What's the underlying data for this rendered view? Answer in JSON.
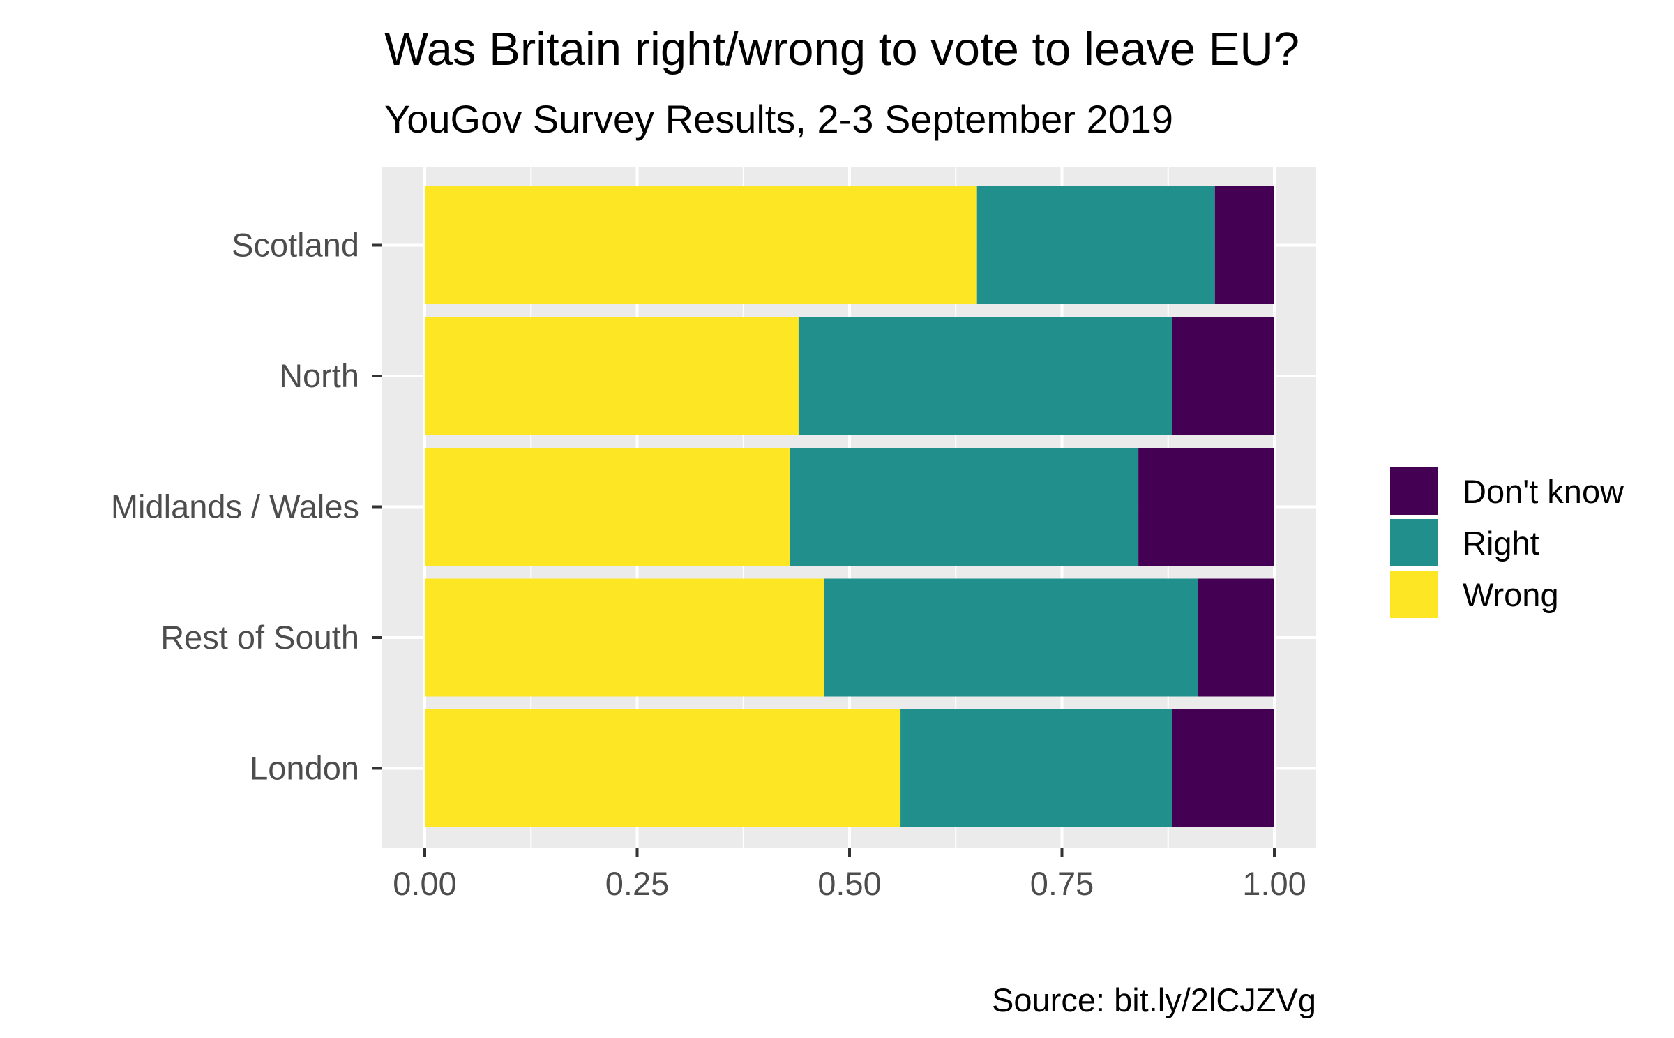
{
  "chart_data": {
    "type": "bar",
    "orientation": "horizontal",
    "stacked": true,
    "title": "Was Britain right/wrong to vote to leave EU?",
    "subtitle": "YouGov Survey Results, 2-3 September 2019",
    "caption": "Source: bit.ly/2lCJZVg",
    "xlabel": "",
    "ylabel": "",
    "xlim": [
      0,
      1
    ],
    "x_ticks": [
      "0.00",
      "0.25",
      "0.50",
      "0.75",
      "1.00"
    ],
    "x_tick_values": [
      0,
      0.25,
      0.5,
      0.75,
      1
    ],
    "categories": [
      "Scotland",
      "North",
      "Midlands / Wales",
      "Rest of South",
      "London"
    ],
    "series": [
      {
        "name": "Wrong",
        "color": "#FDE725",
        "values": [
          0.65,
          0.44,
          0.43,
          0.47,
          0.56
        ]
      },
      {
        "name": "Right",
        "color": "#21908C",
        "values": [
          0.28,
          0.44,
          0.41,
          0.44,
          0.32
        ]
      },
      {
        "name": "Don't know",
        "color": "#440154",
        "values": [
          0.07,
          0.12,
          0.16,
          0.09,
          0.12
        ]
      }
    ],
    "legend": {
      "position": "right",
      "order": [
        "Don't know",
        "Right",
        "Wrong"
      ]
    },
    "grid": true,
    "panel_background": "#EBEBEB",
    "grid_color": "#FFFFFF"
  }
}
